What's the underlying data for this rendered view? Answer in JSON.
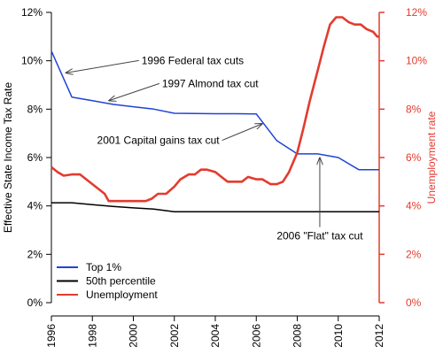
{
  "chart_data": {
    "type": "line",
    "xlim": [
      1996,
      2012
    ],
    "ylim_left": [
      0,
      12
    ],
    "ylim_right": [
      0,
      12
    ],
    "x_ticks": [
      "1996",
      "1998",
      "2000",
      "2002",
      "2004",
      "2006",
      "2008",
      "2010",
      "2012"
    ],
    "y_ticks_left": [
      "0%",
      "2%",
      "4%",
      "6%",
      "8%",
      "10%",
      "12%"
    ],
    "y_ticks_right": [
      "0%",
      "2%",
      "4%",
      "6%",
      "8%",
      "10%",
      "12%"
    ],
    "ylabel_left": "Effective State Income Tax Rate",
    "ylabel_right": "Unemployment rate",
    "right_axis_color": "#e33b2e",
    "grid": false,
    "legend_position": "bottom-left",
    "series": [
      {
        "name": "Top 1%",
        "color": "#1f44d6",
        "axis": "left",
        "points": [
          [
            1996,
            10.4
          ],
          [
            1997,
            8.5
          ],
          [
            1998,
            8.35
          ],
          [
            1999,
            8.2
          ],
          [
            2000,
            8.1
          ],
          [
            2001,
            8.0
          ],
          [
            2002,
            7.83
          ],
          [
            2003,
            7.82
          ],
          [
            2004,
            7.81
          ],
          [
            2005,
            7.81
          ],
          [
            2006,
            7.8
          ],
          [
            2007,
            6.7
          ],
          [
            2008,
            6.15
          ],
          [
            2009,
            6.15
          ],
          [
            2010,
            6.0
          ],
          [
            2011,
            5.5
          ],
          [
            2012,
            5.5
          ]
        ]
      },
      {
        "name": "50th percentile",
        "color": "#000000",
        "axis": "left",
        "points": [
          [
            1996,
            4.13
          ],
          [
            1997,
            4.13
          ],
          [
            1998,
            4.05
          ],
          [
            1999,
            3.98
          ],
          [
            2000,
            3.92
          ],
          [
            2001,
            3.87
          ],
          [
            2002,
            3.76
          ],
          [
            2003,
            3.76
          ],
          [
            2004,
            3.76
          ],
          [
            2005,
            3.76
          ],
          [
            2006,
            3.76
          ],
          [
            2007,
            3.76
          ],
          [
            2008,
            3.76
          ],
          [
            2009,
            3.76
          ],
          [
            2010,
            3.76
          ],
          [
            2011,
            3.76
          ],
          [
            2012,
            3.76
          ]
        ]
      },
      {
        "name": "Unemployment",
        "color": "#e33b2e",
        "axis": "right",
        "points": [
          [
            1996,
            5.6
          ],
          [
            1996.3,
            5.4
          ],
          [
            1996.6,
            5.25
          ],
          [
            1997,
            5.3
          ],
          [
            1997.4,
            5.3
          ],
          [
            1997.7,
            5.1
          ],
          [
            1998,
            4.9
          ],
          [
            1998.3,
            4.7
          ],
          [
            1998.6,
            4.5
          ],
          [
            1998.8,
            4.2
          ],
          [
            1999.2,
            4.2
          ],
          [
            1999.6,
            4.2
          ],
          [
            2000,
            4.2
          ],
          [
            2000.6,
            4.2
          ],
          [
            2000.9,
            4.3
          ],
          [
            2001.2,
            4.5
          ],
          [
            2001.6,
            4.5
          ],
          [
            2002,
            4.8
          ],
          [
            2002.3,
            5.1
          ],
          [
            2002.7,
            5.3
          ],
          [
            2003,
            5.3
          ],
          [
            2003.3,
            5.5
          ],
          [
            2003.6,
            5.5
          ],
          [
            2004,
            5.4
          ],
          [
            2004.3,
            5.2
          ],
          [
            2004.6,
            5.0
          ],
          [
            2005,
            5.0
          ],
          [
            2005.3,
            5.0
          ],
          [
            2005.6,
            5.2
          ],
          [
            2006,
            5.1
          ],
          [
            2006.3,
            5.1
          ],
          [
            2006.7,
            4.9
          ],
          [
            2007,
            4.9
          ],
          [
            2007.3,
            5.0
          ],
          [
            2007.6,
            5.4
          ],
          [
            2008,
            6.2
          ],
          [
            2008.3,
            7.2
          ],
          [
            2008.6,
            8.3
          ],
          [
            2009,
            9.6
          ],
          [
            2009.3,
            10.6
          ],
          [
            2009.6,
            11.5
          ],
          [
            2009.9,
            11.8
          ],
          [
            2010.2,
            11.8
          ],
          [
            2010.5,
            11.6
          ],
          [
            2010.8,
            11.5
          ],
          [
            2011.1,
            11.5
          ],
          [
            2011.4,
            11.3
          ],
          [
            2011.7,
            11.2
          ],
          [
            2011.9,
            11.0
          ],
          [
            2012,
            11.0
          ]
        ]
      }
    ],
    "annotations": [
      {
        "text": "1996 Federal tax cuts",
        "anchor": "start",
        "label_x": 2000.4,
        "label_y": 9.9,
        "arrow_to_x": 1996.7,
        "arrow_to_y": 9.5
      },
      {
        "text": "1997 Almond tax cut",
        "anchor": "start",
        "label_x": 2001.4,
        "label_y": 8.95,
        "arrow_to_x": 1998.8,
        "arrow_to_y": 8.35
      },
      {
        "text": "2001 Capital gains tax cut",
        "anchor": "end",
        "label_x": 2004.2,
        "label_y": 6.6,
        "arrow_to_x": 2006.3,
        "arrow_to_y": 7.4
      },
      {
        "text": "2006 \"Flat\" tax cut",
        "anchor": "middle",
        "label_x": 2009.1,
        "label_y": 2.65,
        "arrow_to_x": 2009.1,
        "arrow_to_y": 6.0
      }
    ]
  }
}
